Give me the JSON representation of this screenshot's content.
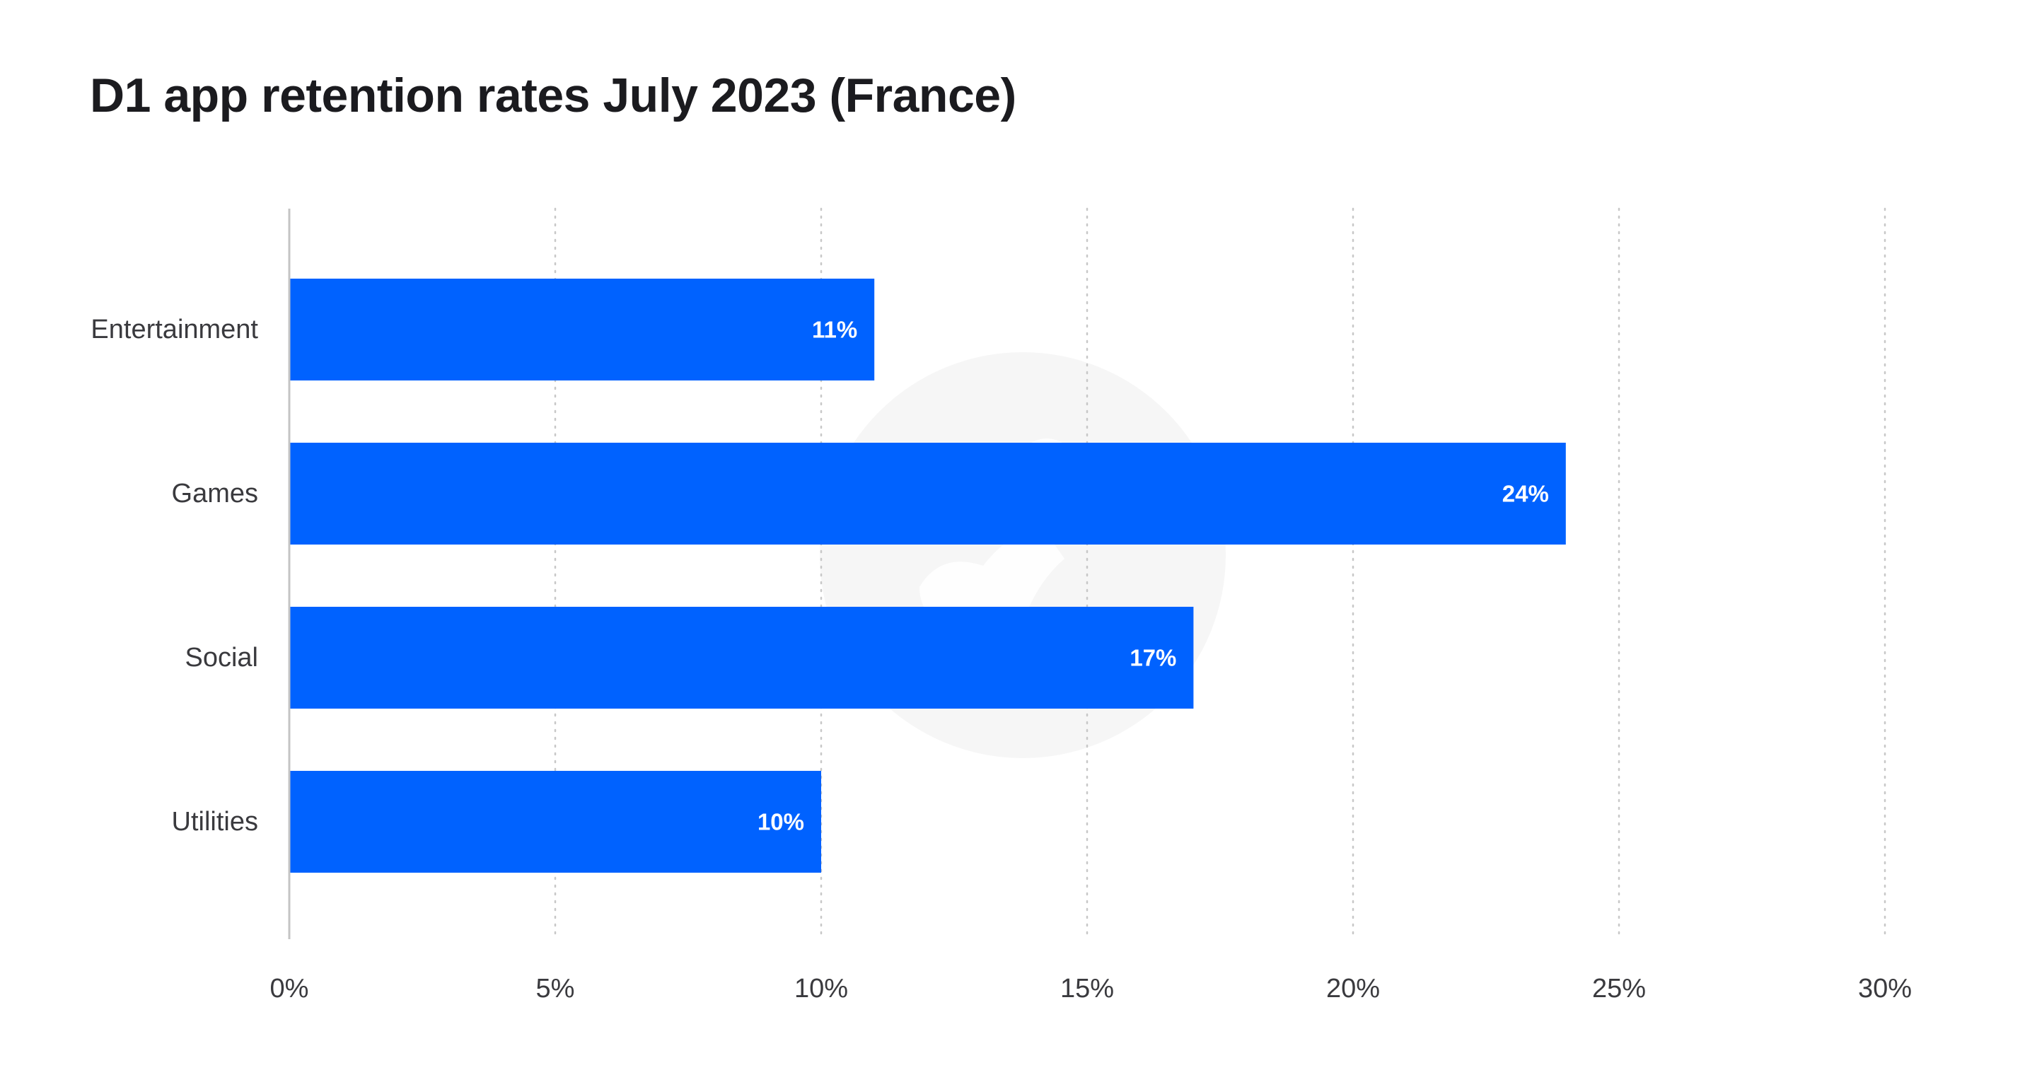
{
  "chart_data": {
    "type": "bar",
    "orientation": "horizontal",
    "title": "D1 app retention rates July 2023 (France)",
    "categories": [
      "Entertainment",
      "Games",
      "Social",
      "Utilities"
    ],
    "values": [
      11,
      24,
      17,
      10
    ],
    "data_labels": [
      "11%",
      "24%",
      "17%",
      "10%"
    ],
    "xlim": [
      0,
      30
    ],
    "x_ticks": [
      0,
      5,
      10,
      15,
      20,
      25,
      30
    ],
    "x_tick_labels": [
      "0%",
      "5%",
      "10%",
      "15%",
      "20%",
      "25%",
      "30%"
    ],
    "grid": "vertical dotted",
    "legend": "none",
    "bar_color": "#0062ff"
  },
  "colors": {
    "background": "#ffffff",
    "bar": "#0062ff",
    "grid": "#c8c8c8",
    "axis": "#c4c4c4",
    "text": "#3a3a3e",
    "title": "#1b1b1f",
    "watermark": "#f6f6f6"
  },
  "watermark": {
    "icon": "logo-watermark-icon"
  }
}
